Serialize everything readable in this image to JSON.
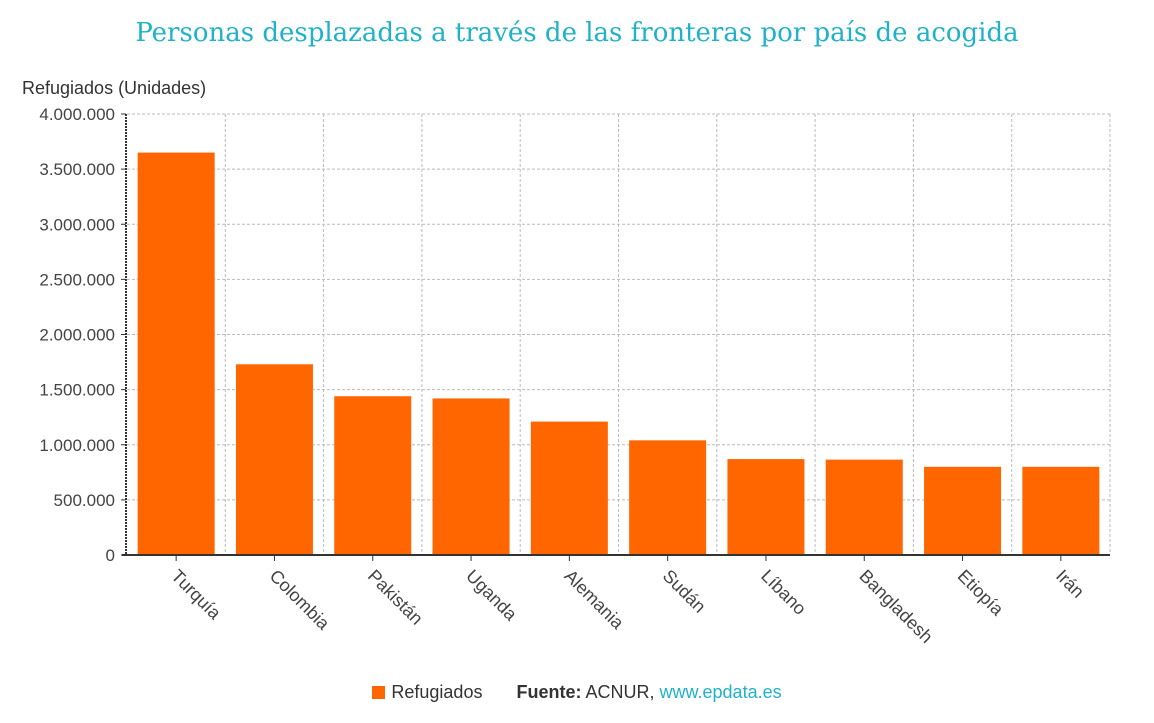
{
  "title": "Personas desplazadas a través de las fronteras por país de acogida",
  "chart_data": {
    "type": "bar",
    "title": "Personas desplazadas a través de las fronteras por país de acogida",
    "ylabel": "Refugiados (Unidades)",
    "xlabel": "",
    "categories": [
      "Turquía",
      "Colombia",
      "Pakistán",
      "Uganda",
      "Alemania",
      "Sudán",
      "Líbano",
      "Bangladesh",
      "Etiopía",
      "Irán"
    ],
    "series": [
      {
        "name": "Refugiados",
        "values": [
          3650000,
          1730000,
          1440000,
          1420000,
          1210000,
          1040000,
          870000,
          865000,
          800000,
          800000
        ]
      }
    ],
    "ylim": [
      0,
      4000000
    ],
    "yticks": [
      0,
      500000,
      1000000,
      1500000,
      2000000,
      2500000,
      3000000,
      3500000,
      4000000
    ],
    "ytick_labels": [
      "0",
      "500.000",
      "1.000.000",
      "1.500.000",
      "2.000.000",
      "2.500.000",
      "3.000.000",
      "3.500.000",
      "4.000.000"
    ],
    "grid": true,
    "legend": "bottom-center"
  },
  "colors": {
    "bar": "#ff6600",
    "title": "#1fb2c9",
    "grid": "#bbbbbb",
    "axis": "#333333"
  },
  "footer": {
    "legend_label": "Refugiados",
    "source_label": "Fuente:",
    "source_text": "ACNUR,",
    "source_link": "www.epdata.es"
  }
}
